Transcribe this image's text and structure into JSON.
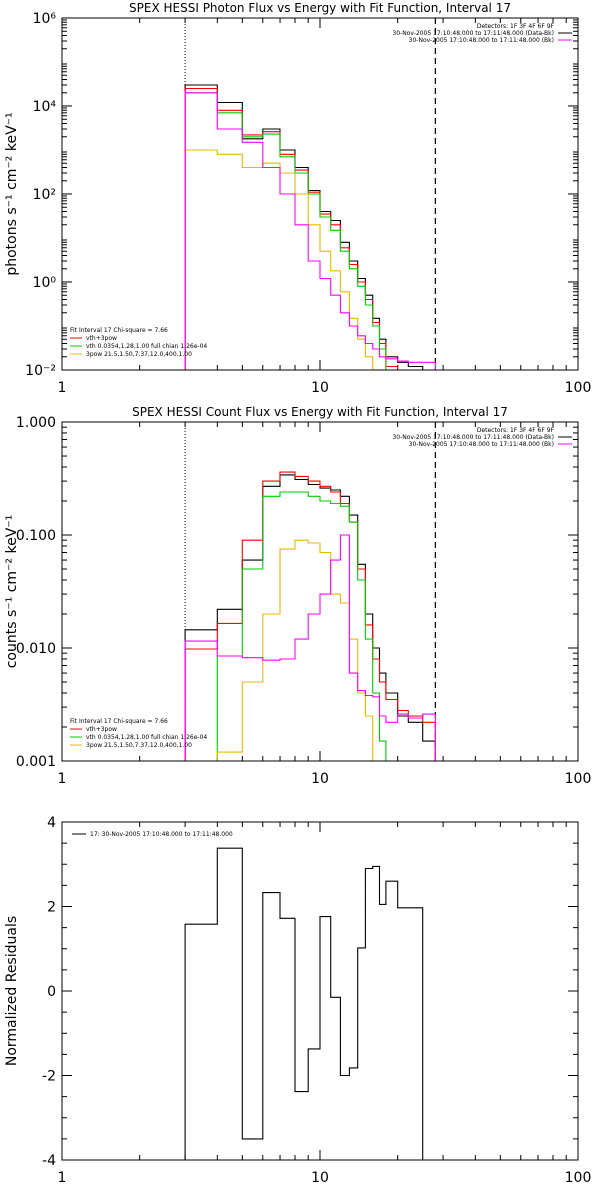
{
  "chart_data": [
    {
      "type": "line",
      "title": "SPEX HESSI Photon Flux vs Energy with Fit Function, Interval 17",
      "xlabel": "",
      "ylabel": "photons s⁻¹ cm⁻² keV⁻¹",
      "xscale": "log",
      "yscale": "log",
      "xlim": [
        1,
        100
      ],
      "ylim": [
        0.01,
        1000000
      ],
      "x_ticks": [
        1,
        10,
        100
      ],
      "x_tick_labels": [
        "1",
        "10",
        "100"
      ],
      "y_ticks": [
        0.01,
        1,
        100,
        10000,
        1000000
      ],
      "y_tick_labels": [
        "10⁻²",
        "10⁰",
        "10²",
        "10⁴",
        "10⁶"
      ],
      "markers": {
        "dotted_x": 3,
        "dashed_x": 28
      },
      "legend_top_right": [
        {
          "text": "Detectors: 1F 3F 4F 6F 9F",
          "color": ""
        },
        {
          "text": "30-Nov-2005 17:10:48.000 to 17:11:48.000 (Data-Bk)",
          "color": "#000000"
        },
        {
          "text": "30-Nov-2005 17:10:48.000 to 17:11:48.000 (Bk)",
          "color": "#ff00ff"
        }
      ],
      "legend_bottom_left": [
        {
          "text": "Fit Interval 17   Chi-square = 7.66",
          "color": ""
        },
        {
          "text": "vth+3pow",
          "color": "#ff0000"
        },
        {
          "text": "vth 0.0354,1.28,1.00  full chian 1.26e-04",
          "color": "#00cc00"
        },
        {
          "text": "3pow 21.5,1.50,7.37,12.0,400,1.00",
          "color": "#e8b800"
        }
      ],
      "edges": [
        3,
        4,
        5,
        6,
        7,
        8,
        9,
        10,
        11,
        12,
        13,
        14,
        15,
        16,
        17,
        18,
        20,
        22,
        25,
        28
      ],
      "series": [
        {
          "name": "",
          "color": "#000000",
          "values": [
            30000,
            12000,
            1800,
            3000,
            1000,
            400,
            120,
            40,
            25,
            8,
            3,
            1.2,
            0.5,
            0.15,
            0.05,
            0.02,
            0.015,
            0.012,
            0.01
          ]
        },
        {
          "name": "vth+3pow",
          "color": "#ff0000",
          "values": [
            25000,
            8000,
            2200,
            2600,
            800,
            350,
            110,
            35,
            20,
            6,
            2.5,
            1,
            0.4,
            0.12,
            0.04,
            0.012,
            0.01,
            0.01,
            0.01
          ]
        },
        {
          "name": "vth",
          "color": "#00cc00",
          "values": [
            20000,
            7000,
            2000,
            2300,
            700,
            300,
            100,
            30,
            15,
            5,
            2,
            0.8,
            0.3,
            0.1,
            0.03,
            0.01,
            0.01,
            0.01,
            0.01
          ]
        },
        {
          "name": "3pow",
          "color": "#e8b800",
          "values": [
            1000,
            800,
            400,
            500,
            300,
            100,
            20,
            5,
            1.8,
            0.6,
            0.15,
            0.05,
            0.02,
            0.01,
            0.01,
            0.01,
            0.01,
            0.01,
            0.01
          ]
        },
        {
          "name": "Bk",
          "color": "#ff00ff",
          "values": [
            20000,
            3000,
            1500,
            400,
            100,
            20,
            3,
            1.2,
            0.5,
            0.2,
            0.1,
            0.06,
            0.04,
            0.03,
            0.02,
            0.018,
            0.016,
            0.015,
            0.015
          ]
        }
      ]
    },
    {
      "type": "line",
      "title": "SPEX HESSI Count Flux vs Energy with Fit Function, Interval 17",
      "xlabel": "",
      "ylabel": "counts s⁻¹ cm⁻² keV⁻¹",
      "xscale": "log",
      "yscale": "log",
      "xlim": [
        1,
        100
      ],
      "ylim": [
        0.001,
        1
      ],
      "x_ticks": [
        1,
        10,
        100
      ],
      "x_tick_labels": [
        "1",
        "10",
        "100"
      ],
      "y_ticks": [
        0.001,
        0.01,
        0.1,
        1
      ],
      "y_tick_labels": [
        "0.001",
        "0.010",
        "0.100",
        "1.000"
      ],
      "markers": {
        "dotted_x": 3,
        "dashed_x": 28
      },
      "legend_top_right": [
        {
          "text": "Detectors: 1F 3F 4F 6F 9F",
          "color": ""
        },
        {
          "text": "30-Nov-2005 17:10:48.000 to 17:11:48.000 (Data-Bk)",
          "color": "#000000"
        },
        {
          "text": "30-Nov-2005 17:10:48.000 to 17:11:48.000 (Bk)",
          "color": "#ff00ff"
        }
      ],
      "legend_bottom_left": [
        {
          "text": "Fit Interval 17   Chi-square = 7.66",
          "color": ""
        },
        {
          "text": "vth+3pow",
          "color": "#ff0000"
        },
        {
          "text": "vth 0.0354,1.28,1.00  full chian 1.26e-04",
          "color": "#00cc00"
        },
        {
          "text": "3pow 21.5,1.50,7.37,12.0,400,1.00",
          "color": "#e8b800"
        }
      ],
      "edges": [
        3,
        4,
        5,
        6,
        7,
        8,
        9,
        10,
        11,
        12,
        13,
        14,
        15,
        16,
        17,
        18,
        20,
        22,
        25,
        28
      ],
      "series": [
        {
          "name": "",
          "color": "#000000",
          "values": [
            0.0145,
            0.022,
            0.06,
            0.27,
            0.34,
            0.31,
            0.28,
            0.26,
            0.25,
            0.22,
            0.15,
            0.055,
            0.02,
            0.01,
            0.006,
            0.004,
            0.0025,
            0.0022,
            0.0015
          ]
        },
        {
          "name": "vth+3pow",
          "color": "#ff0000",
          "values": [
            0.0098,
            0.0165,
            0.09,
            0.3,
            0.36,
            0.33,
            0.3,
            0.27,
            0.24,
            0.19,
            0.13,
            0.05,
            0.016,
            0.008,
            0.005,
            0.0035,
            0.0028,
            0.0025,
            0.0022
          ]
        },
        {
          "name": "vth",
          "color": "#00cc00",
          "values": [
            0.001,
            0.0085,
            0.05,
            0.22,
            0.24,
            0.24,
            0.22,
            0.2,
            0.19,
            0.18,
            0.13,
            0.04,
            0.012,
            0.004,
            0.0015,
            0.001,
            0.001,
            0.001,
            0.001
          ]
        },
        {
          "name": "3pow",
          "color": "#e8b800",
          "values": [
            0.001,
            0.0012,
            0.005,
            0.02,
            0.075,
            0.09,
            0.085,
            0.07,
            0.03,
            0.025,
            0.012,
            0.004,
            0.0025,
            0.001,
            0.001,
            0.001,
            0.001,
            0.001,
            0.001
          ]
        },
        {
          "name": "Bk",
          "color": "#ff00ff",
          "values": [
            0.0115,
            0.0085,
            0.0082,
            0.0078,
            0.008,
            0.012,
            0.02,
            0.03,
            0.06,
            0.1,
            0.006,
            0.0042,
            0.0038,
            0.0037,
            0.0025,
            0.0022,
            0.0026,
            0.0024,
            0.0026
          ]
        }
      ]
    },
    {
      "type": "line",
      "title": "",
      "xlabel": "",
      "ylabel": "Normalized Residuals",
      "xscale": "log",
      "yscale": "linear",
      "xlim": [
        1,
        100
      ],
      "ylim": [
        -4,
        4
      ],
      "x_ticks": [
        1,
        10,
        100
      ],
      "x_tick_labels": [
        "1",
        "10",
        "100"
      ],
      "y_ticks": [
        -4,
        -2,
        0,
        2,
        4
      ],
      "y_tick_labels": [
        "-4",
        "-2",
        "0",
        "2",
        "4"
      ],
      "legend": [
        {
          "text": "17: 30-Nov-2005 17:10:48.000 to 17:11:48.000",
          "color": "#000000"
        }
      ],
      "edges": [
        3,
        4,
        5,
        6,
        7,
        8,
        9,
        10,
        11,
        12,
        13,
        14,
        15,
        16,
        17,
        18,
        20,
        22,
        25,
        28
      ],
      "series": [
        {
          "name": "17",
          "color": "#000000",
          "values": [
            1.58,
            3.38,
            -3.5,
            2.33,
            1.72,
            -2.38,
            -1.37,
            1.76,
            -0.15,
            -2.0,
            -1.82,
            1.02,
            2.9,
            2.95,
            2.05,
            2.6,
            1.97,
            1.97,
            -4.0
          ]
        }
      ]
    }
  ]
}
